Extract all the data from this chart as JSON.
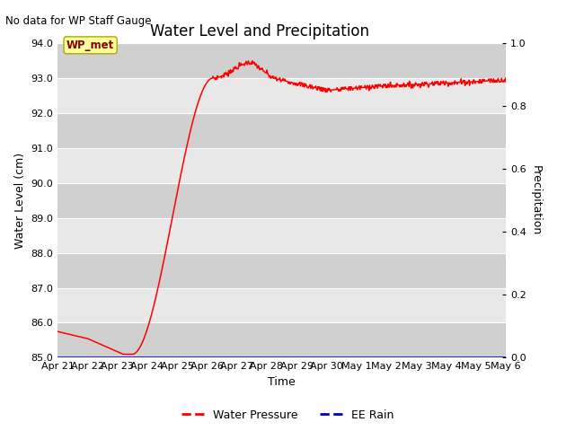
{
  "title": "Water Level and Precipitation",
  "top_left_text": "No data for WP Staff Gauge",
  "wp_met_label": "WP_met",
  "xlabel": "Time",
  "ylabel_left": "Water Level (cm)",
  "ylabel_right": "Precipitation",
  "ylim_left": [
    85.0,
    94.0
  ],
  "ylim_right": [
    0.0,
    1.0
  ],
  "yticks_left": [
    85.0,
    86.0,
    87.0,
    88.0,
    89.0,
    90.0,
    91.0,
    92.0,
    93.0,
    94.0
  ],
  "yticks_right": [
    0.0,
    0.2,
    0.4,
    0.6,
    0.8,
    1.0
  ],
  "xtick_labels": [
    "Apr 21",
    "Apr 22",
    "Apr 23",
    "Apr 24",
    "Apr 25",
    "Apr 26",
    "Apr 27",
    "Apr 28",
    "Apr 29",
    "Apr 30",
    "May 1",
    "May 2",
    "May 3",
    "May 4",
    "May 5",
    "May 6"
  ],
  "line_color_wp": "#FF0000",
  "line_color_rain": "#0000BB",
  "background_color_light": "#E8E8E8",
  "background_color_dark": "#D0D0D0",
  "fig_background": "#FFFFFF",
  "legend_wp": "Water Pressure",
  "legend_rain": "EE Rain",
  "wp_met_box_facecolor": "#FFFF99",
  "wp_met_box_edgecolor": "#AAAA00",
  "wp_met_text_color": "#880000",
  "title_fontsize": 12,
  "axis_label_fontsize": 9,
  "tick_fontsize": 8
}
